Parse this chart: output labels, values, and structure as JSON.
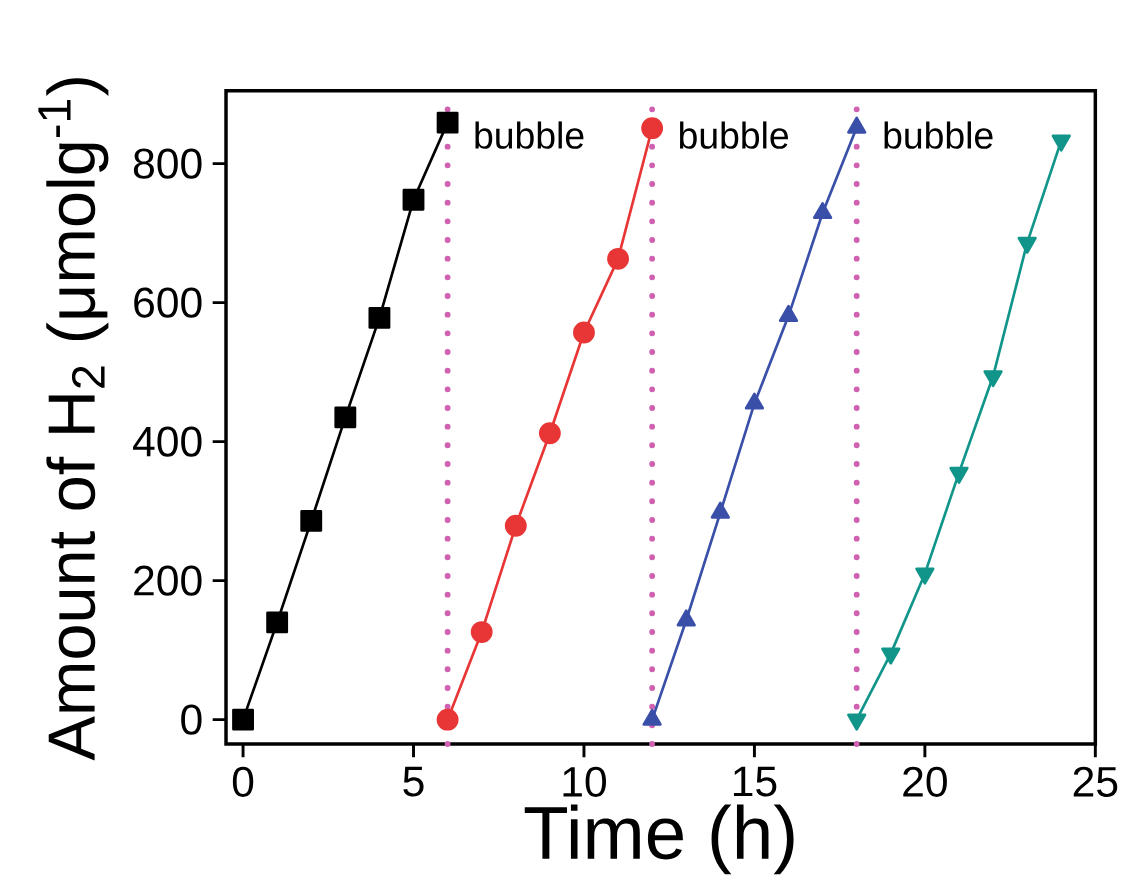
{
  "chart_data": {
    "type": "line",
    "xlabel": "Time (h)",
    "ylabel": "Amount of H$_{2}$ (μmolg$^{-1}$)",
    "xlim": [
      -0.5,
      25
    ],
    "ylim": [
      -35,
      905
    ],
    "xticks": [
      0,
      5,
      10,
      15,
      20,
      25
    ],
    "yticks": [
      0,
      200,
      400,
      600,
      800
    ],
    "series": [
      {
        "color": "#000000",
        "marker": "square",
        "x": [
          0,
          1,
          2,
          3,
          4,
          5,
          6
        ],
        "values": [
          0,
          140,
          286,
          435,
          578,
          748,
          859
        ]
      },
      {
        "color": "#e83535",
        "marker": "circle",
        "x": [
          6,
          7,
          8,
          9,
          10,
          11,
          12
        ],
        "values": [
          0,
          126,
          279,
          412,
          557,
          663,
          851
        ]
      },
      {
        "color": "#3a4fa8",
        "marker": "triangle",
        "x": [
          12,
          13,
          14,
          15,
          16,
          17,
          18
        ],
        "values": [
          0,
          143,
          298,
          455,
          581,
          729,
          852
        ]
      },
      {
        "color": "#11958a",
        "marker": "triangle down",
        "x": [
          18,
          19,
          20,
          21,
          22,
          23,
          24
        ],
        "values": [
          0,
          95,
          210,
          355,
          494,
          686,
          833
        ]
      }
    ],
    "ref_lines": [
      {
        "axis": "x",
        "value": 6,
        "color": "#d060b0",
        "line_style": "dotted"
      },
      {
        "axis": "x",
        "value": 12,
        "color": "#d060b0",
        "line_style": "dotted"
      },
      {
        "axis": "x",
        "value": 18,
        "color": "#d060b0",
        "line_style": "dotted"
      }
    ],
    "annotations": [
      "bubble",
      "bubble",
      "bubble"
    ]
  }
}
